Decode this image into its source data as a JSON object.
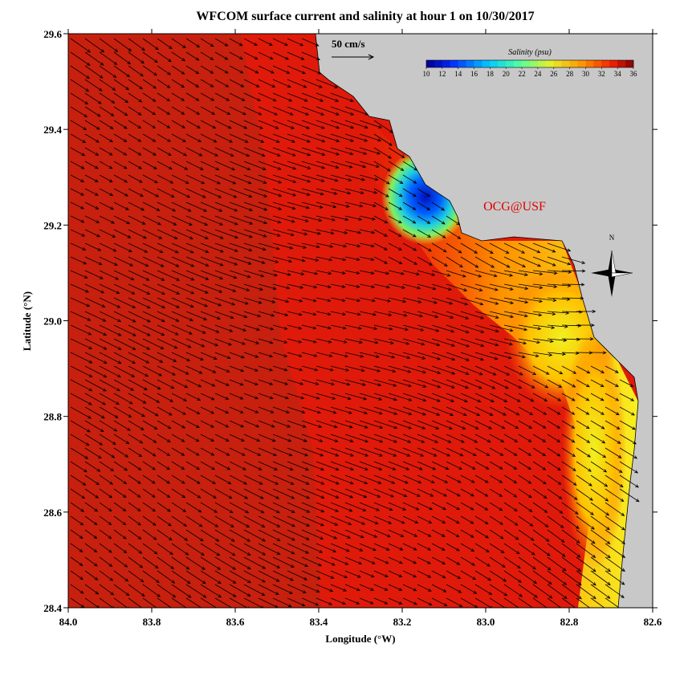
{
  "chart_data": {
    "type": "map",
    "title": "WFCOM surface current and salinity at hour 1 on 10/30/2017",
    "xlabel": "Longitude (°W)",
    "ylabel": "Latitude (°N)",
    "xlim": [
      84.0,
      82.6
    ],
    "ylim": [
      28.4,
      29.6
    ],
    "xticks": [
      {
        "value": 84.0,
        "label": "84.0"
      },
      {
        "value": 83.8,
        "label": "83.8"
      },
      {
        "value": 83.6,
        "label": "83.6"
      },
      {
        "value": 83.4,
        "label": "83.4"
      },
      {
        "value": 83.2,
        "label": "83.2"
      },
      {
        "value": 83.0,
        "label": "83.0"
      },
      {
        "value": 82.8,
        "label": "82.8"
      },
      {
        "value": 82.6,
        "label": "82.6"
      }
    ],
    "yticks": [
      {
        "value": 28.4,
        "label": "28.4"
      },
      {
        "value": 28.6,
        "label": "28.6"
      },
      {
        "value": 28.8,
        "label": "28.8"
      },
      {
        "value": 29.0,
        "label": "29.0"
      },
      {
        "value": 29.2,
        "label": "29.2"
      },
      {
        "value": 29.4,
        "label": "29.4"
      },
      {
        "value": 29.6,
        "label": "29.6"
      }
    ],
    "scale_label": "50 cm/s",
    "credit": "OCG@USF",
    "north_label": "N",
    "colorbar": {
      "title": "Salinity (psu)",
      "lim": [
        10,
        36
      ],
      "ticks": [
        10,
        12,
        14,
        16,
        18,
        20,
        22,
        24,
        26,
        28,
        30,
        32,
        34,
        36
      ]
    }
  }
}
